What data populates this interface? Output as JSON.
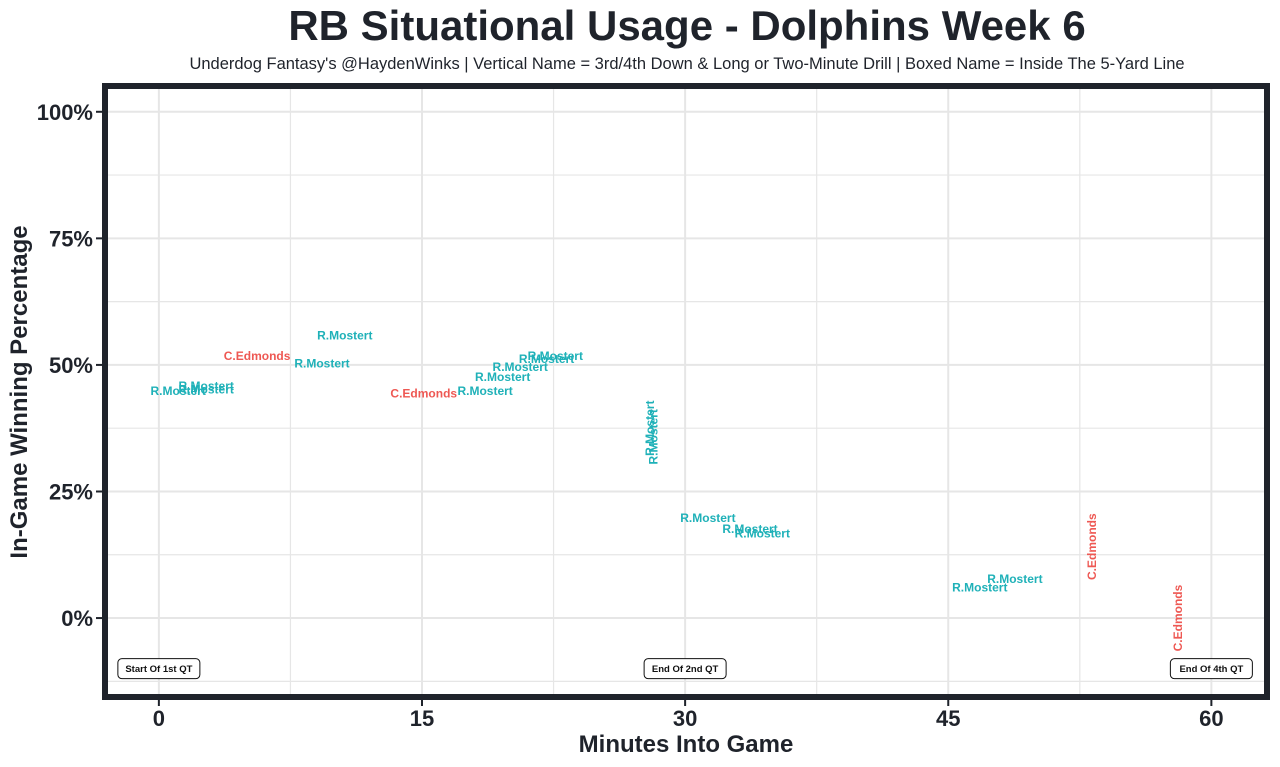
{
  "chart_data": {
    "type": "scatter",
    "title": "RB Situational Usage - Dolphins Week 6",
    "subtitle": "Underdog Fantasy's @HaydenWinks | Vertical Name = 3rd/4th Down & Long or Two-Minute Drill | Boxed Name = Inside The 5-Yard Line",
    "xlabel": "Minutes Into Game",
    "ylabel": "In-Game Winning Percentage",
    "xlim": [
      -2.9,
      63.0
    ],
    "ylim": [
      -0.15,
      1.045
    ],
    "x_ticks": [
      {
        "value": 0,
        "label": "0"
      },
      {
        "value": 15,
        "label": "15"
      },
      {
        "value": 30,
        "label": "30"
      },
      {
        "value": 45,
        "label": "45"
      },
      {
        "value": 60,
        "label": "60"
      }
    ],
    "y_ticks": [
      {
        "value": 0,
        "label": "0%"
      },
      {
        "value": 0.25,
        "label": "25%"
      },
      {
        "value": 0.5,
        "label": "50%"
      },
      {
        "value": 0.75,
        "label": "75%"
      },
      {
        "value": 1.0,
        "label": "100%"
      }
    ],
    "grid": true,
    "colors": {
      "R.Mostert": "#1fb1b8",
      "C.Edmonds": "#ee5853",
      "frame": "#1f232b",
      "grid": "#e6e6e6"
    },
    "points": [
      {
        "player": "R.Mostert",
        "x": 2.7,
        "y": 0.458,
        "vertical": false
      },
      {
        "player": "R.Mostert",
        "x": 2.7,
        "y": 0.451,
        "vertical": false
      },
      {
        "player": "R.Mostert",
        "x": 1.1,
        "y": 0.448,
        "vertical": false
      },
      {
        "player": "C.Edmonds",
        "x": 5.6,
        "y": 0.518,
        "vertical": false
      },
      {
        "player": "R.Mostert",
        "x": 10.6,
        "y": 0.558,
        "vertical": false
      },
      {
        "player": "R.Mostert",
        "x": 9.3,
        "y": 0.503,
        "vertical": false
      },
      {
        "player": "C.Edmonds",
        "x": 15.1,
        "y": 0.444,
        "vertical": false
      },
      {
        "player": "R.Mostert",
        "x": 18.6,
        "y": 0.448,
        "vertical": false
      },
      {
        "player": "R.Mostert",
        "x": 19.6,
        "y": 0.476,
        "vertical": false
      },
      {
        "player": "R.Mostert",
        "x": 20.6,
        "y": 0.496,
        "vertical": false
      },
      {
        "player": "R.Mostert",
        "x": 22.1,
        "y": 0.512,
        "vertical": false
      },
      {
        "player": "R.Mostert",
        "x": 22.6,
        "y": 0.518,
        "vertical": false
      },
      {
        "player": "R.Mostert",
        "x": 28.0,
        "y": 0.375,
        "vertical": true
      },
      {
        "player": "R.Mostert",
        "x": 28.2,
        "y": 0.358,
        "vertical": true
      },
      {
        "player": "R.Mostert",
        "x": 31.3,
        "y": 0.198,
        "vertical": false
      },
      {
        "player": "R.Mostert",
        "x": 33.7,
        "y": 0.176,
        "vertical": false
      },
      {
        "player": "R.Mostert",
        "x": 34.4,
        "y": 0.167,
        "vertical": false
      },
      {
        "player": "R.Mostert",
        "x": 48.8,
        "y": 0.077,
        "vertical": false
      },
      {
        "player": "R.Mostert",
        "x": 46.8,
        "y": 0.06,
        "vertical": false
      },
      {
        "player": "C.Edmonds",
        "x": 53.2,
        "y": 0.141,
        "vertical": true
      },
      {
        "player": "C.Edmonds",
        "x": 58.1,
        "y": 0.0,
        "vertical": true
      }
    ],
    "annotations": [
      {
        "text": "Start Of 1st QT",
        "x": 0,
        "y": -0.1
      },
      {
        "text": "End Of 2nd QT",
        "x": 30,
        "y": -0.1
      },
      {
        "text": "End Of 4th QT",
        "x": 60,
        "y": -0.1
      }
    ]
  }
}
